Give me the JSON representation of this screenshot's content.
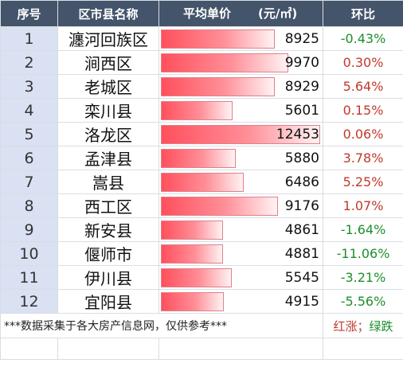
{
  "headers": {
    "rank": "序号",
    "district": "区市县名称",
    "price": "平均单价",
    "unit": "(元/㎡)",
    "ratio": "环比"
  },
  "chart_data": {
    "type": "table",
    "columns": [
      "序号",
      "区市县名称",
      "平均单价(元/㎡)",
      "环比"
    ],
    "xmax": 12453,
    "rows": [
      {
        "rank": "1",
        "district": "瀍河回族区",
        "price": 8925,
        "ratio": "-0.43%",
        "trend": "down"
      },
      {
        "rank": "2",
        "district": "涧西区",
        "price": 9970,
        "ratio": "0.30%",
        "trend": "up"
      },
      {
        "rank": "3",
        "district": "老城区",
        "price": 8929,
        "ratio": "5.64%",
        "trend": "up"
      },
      {
        "rank": "4",
        "district": "栾川县",
        "price": 5601,
        "ratio": "0.15%",
        "trend": "up"
      },
      {
        "rank": "5",
        "district": "洛龙区",
        "price": 12453,
        "ratio": "0.06%",
        "trend": "up"
      },
      {
        "rank": "6",
        "district": "孟津县",
        "price": 5880,
        "ratio": "3.78%",
        "trend": "up"
      },
      {
        "rank": "7",
        "district": "嵩县",
        "price": 6486,
        "ratio": "5.25%",
        "trend": "up"
      },
      {
        "rank": "8",
        "district": "西工区",
        "price": 9176,
        "ratio": "1.07%",
        "trend": "up"
      },
      {
        "rank": "9",
        "district": "新安县",
        "price": 4861,
        "ratio": "-1.64%",
        "trend": "down"
      },
      {
        "rank": "10",
        "district": "偃师市",
        "price": 4881,
        "ratio": "-11.06%",
        "trend": "down"
      },
      {
        "rank": "11",
        "district": "伊川县",
        "price": 5545,
        "ratio": "-3.21%",
        "trend": "down"
      },
      {
        "rank": "12",
        "district": "宜阳县",
        "price": 4915,
        "ratio": "-5.56%",
        "trend": "down"
      }
    ]
  },
  "footer": {
    "note": "***数据采集于各大房产信息网，仅供参考***",
    "legend_up": "红涨",
    "legend_sep": "；",
    "legend_down": "绿跌"
  },
  "colors": {
    "header_bg": "#44546a",
    "rank_bg": "#d9e1f2",
    "bar": "#ff4f5c",
    "up": "#c0392b",
    "down": "#1e8e2e"
  }
}
